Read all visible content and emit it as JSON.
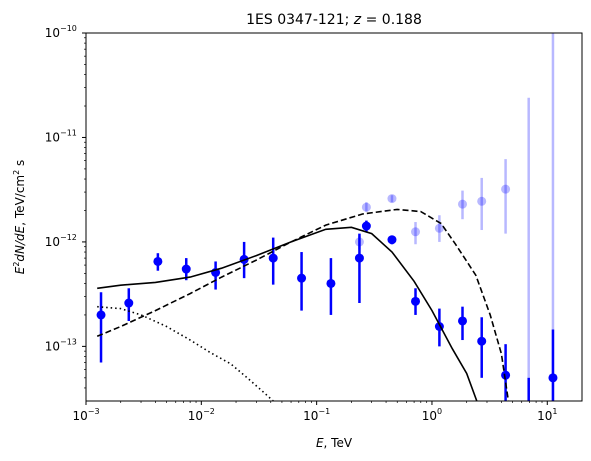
{
  "chart_data": {
    "type": "scatter",
    "title_main": "1ES 0347-121; ",
    "title_var": "z",
    "title_eq": " = 0.188",
    "xlabel_var": "E",
    "xlabel_unit": ", TeV",
    "ylabel_var": "E",
    "ylabel_exp": "2",
    "ylabel_mid": "dN/dE",
    "ylabel_unit": ", TeV/cm",
    "ylabel_unit_exp": "2",
    "ylabel_tail": " s",
    "x_scale": "log",
    "y_scale": "log",
    "xlim": [
      0.001,
      20
    ],
    "ylim": [
      3e-14,
      1e-10
    ],
    "x_ticks": [
      {
        "value": 0.001,
        "base": "10",
        "exp": "−3"
      },
      {
        "value": 0.01,
        "base": "10",
        "exp": "−2"
      },
      {
        "value": 0.1,
        "base": "10",
        "exp": "−1"
      },
      {
        "value": 1,
        "base": "10",
        "exp": "0"
      },
      {
        "value": 10,
        "base": "10",
        "exp": "1"
      }
    ],
    "y_ticks": [
      {
        "value": 1e-13,
        "base": "10",
        "exp": "−13"
      },
      {
        "value": 1e-12,
        "base": "10",
        "exp": "−12"
      },
      {
        "value": 1e-11,
        "base": "10",
        "exp": "−11"
      },
      {
        "value": 1e-10,
        "base": "10",
        "exp": "−10"
      }
    ],
    "grid": false,
    "series": [
      {
        "kind": "points",
        "color": "#0000ff",
        "alpha": 1.0,
        "points": [
          {
            "x": 0.00135,
            "y": 2e-13,
            "ylo": 7e-14,
            "yhi": 3.3e-13
          },
          {
            "x": 0.00235,
            "y": 2.6e-13,
            "ylo": 1.75e-13,
            "yhi": 3.6e-13
          },
          {
            "x": 0.0042,
            "y": 6.5e-13,
            "ylo": 5.3e-13,
            "yhi": 7.8e-13
          },
          {
            "x": 0.0074,
            "y": 5.5e-13,
            "ylo": 4.3e-13,
            "yhi": 7e-13
          },
          {
            "x": 0.0133,
            "y": 5.1e-13,
            "ylo": 3.5e-13,
            "yhi": 6.5e-13
          },
          {
            "x": 0.0235,
            "y": 6.8e-13,
            "ylo": 4.5e-13,
            "yhi": 1e-12
          },
          {
            "x": 0.042,
            "y": 7e-13,
            "ylo": 3.9e-13,
            "yhi": 1.1e-12
          },
          {
            "x": 0.074,
            "y": 4.5e-13,
            "ylo": 2.2e-13,
            "yhi": 8e-13
          },
          {
            "x": 0.133,
            "y": 4e-13,
            "ylo": 2e-13,
            "yhi": 7e-13
          },
          {
            "x": 0.235,
            "y": 7e-13,
            "ylo": 2.6e-13,
            "yhi": 1.2e-12
          },
          {
            "x": 0.27,
            "y": 1.42e-12,
            "ylo": 1.25e-12,
            "yhi": 1.6e-12
          },
          {
            "x": 0.45,
            "y": 1.05e-12,
            "ylo": 9.5e-13,
            "yhi": 1.15e-12
          },
          {
            "x": 0.72,
            "y": 2.7e-13,
            "ylo": 2e-13,
            "yhi": 3.6e-13
          },
          {
            "x": 1.16,
            "y": 1.55e-13,
            "ylo": 1e-13,
            "yhi": 2.3e-13
          },
          {
            "x": 1.84,
            "y": 1.75e-13,
            "ylo": 1.15e-13,
            "yhi": 2.4e-13
          },
          {
            "x": 2.7,
            "y": 1.12e-13,
            "ylo": 5e-14,
            "yhi": 1.9e-13
          },
          {
            "x": 4.35,
            "y": 5.3e-14,
            "ylo": 3e-14,
            "yhi": 1.05e-13
          },
          {
            "x": 6.9,
            "y": null,
            "ylo": 3e-14,
            "yhi": 5e-14
          },
          {
            "x": 11.2,
            "y": 5e-14,
            "ylo": 3e-14,
            "yhi": 1.45e-13
          }
        ]
      },
      {
        "kind": "points",
        "color": "#0000ff",
        "alpha": 0.28,
        "points": [
          {
            "x": 0.235,
            "y": 1e-12,
            "ylo": 8.5e-13,
            "yhi": 1.15e-12
          },
          {
            "x": 0.27,
            "y": 2.15e-12,
            "ylo": 1.95e-12,
            "yhi": 2.4e-12
          },
          {
            "x": 0.45,
            "y": 2.6e-12,
            "ylo": 2.4e-12,
            "yhi": 2.8e-12
          },
          {
            "x": 0.72,
            "y": 1.25e-12,
            "ylo": 9.5e-13,
            "yhi": 1.55e-12
          },
          {
            "x": 1.16,
            "y": 1.35e-12,
            "ylo": 1e-12,
            "yhi": 1.8e-12
          },
          {
            "x": 1.84,
            "y": 2.3e-12,
            "ylo": 1.65e-12,
            "yhi": 3.1e-12
          },
          {
            "x": 2.7,
            "y": 2.45e-12,
            "ylo": 1.3e-12,
            "yhi": 4.1e-12
          },
          {
            "x": 4.35,
            "y": 3.2e-12,
            "ylo": 1.2e-12,
            "yhi": 6.2e-12
          },
          {
            "x": 6.9,
            "y": null,
            "ylo": 3e-14,
            "yhi": 2.4e-11
          },
          {
            "x": 11.2,
            "y": null,
            "ylo": 3e-14,
            "yhi": 1e-10
          }
        ]
      },
      {
        "kind": "line",
        "style": "solid",
        "color": "#000000",
        "points": [
          [
            0.00125,
            3.6e-13
          ],
          [
            0.002,
            3.85e-13
          ],
          [
            0.004,
            4.1e-13
          ],
          [
            0.008,
            4.6e-13
          ],
          [
            0.015,
            5.6e-13
          ],
          [
            0.03,
            7.4e-13
          ],
          [
            0.06,
            1e-12
          ],
          [
            0.12,
            1.32e-12
          ],
          [
            0.2,
            1.38e-12
          ],
          [
            0.3,
            1.2e-12
          ],
          [
            0.45,
            8e-13
          ],
          [
            0.7,
            4.2e-13
          ],
          [
            1.0,
            2.2e-13
          ],
          [
            1.5,
            9.5e-14
          ],
          [
            2.0,
            5.5e-14
          ],
          [
            2.45,
            3e-14
          ]
        ]
      },
      {
        "kind": "line",
        "style": "dashed",
        "color": "#000000",
        "points": [
          [
            0.00125,
            1.25e-13
          ],
          [
            0.002,
            1.55e-13
          ],
          [
            0.004,
            2.2e-13
          ],
          [
            0.008,
            3.2e-13
          ],
          [
            0.015,
            4.6e-13
          ],
          [
            0.03,
            6.7e-13
          ],
          [
            0.06,
            1e-12
          ],
          [
            0.12,
            1.45e-12
          ],
          [
            0.25,
            1.85e-12
          ],
          [
            0.5,
            2.05e-12
          ],
          [
            0.8,
            1.95e-12
          ],
          [
            1.2,
            1.5e-12
          ],
          [
            1.6,
            9.5e-13
          ],
          [
            2.4,
            4.8e-13
          ],
          [
            3.2,
            2e-13
          ],
          [
            4.0,
            8.5e-14
          ],
          [
            4.6,
            3e-14
          ]
        ]
      },
      {
        "kind": "line",
        "style": "dotted",
        "color": "#000000",
        "points": [
          [
            0.00125,
            2.4e-13
          ],
          [
            0.002,
            2.3e-13
          ],
          [
            0.003,
            2e-13
          ],
          [
            0.005,
            1.55e-13
          ],
          [
            0.008,
            1.15e-13
          ],
          [
            0.012,
            8.7e-14
          ],
          [
            0.018,
            6.8e-14
          ],
          [
            0.025,
            5e-14
          ],
          [
            0.035,
            3.6e-14
          ],
          [
            0.042,
            3e-14
          ]
        ]
      }
    ]
  }
}
